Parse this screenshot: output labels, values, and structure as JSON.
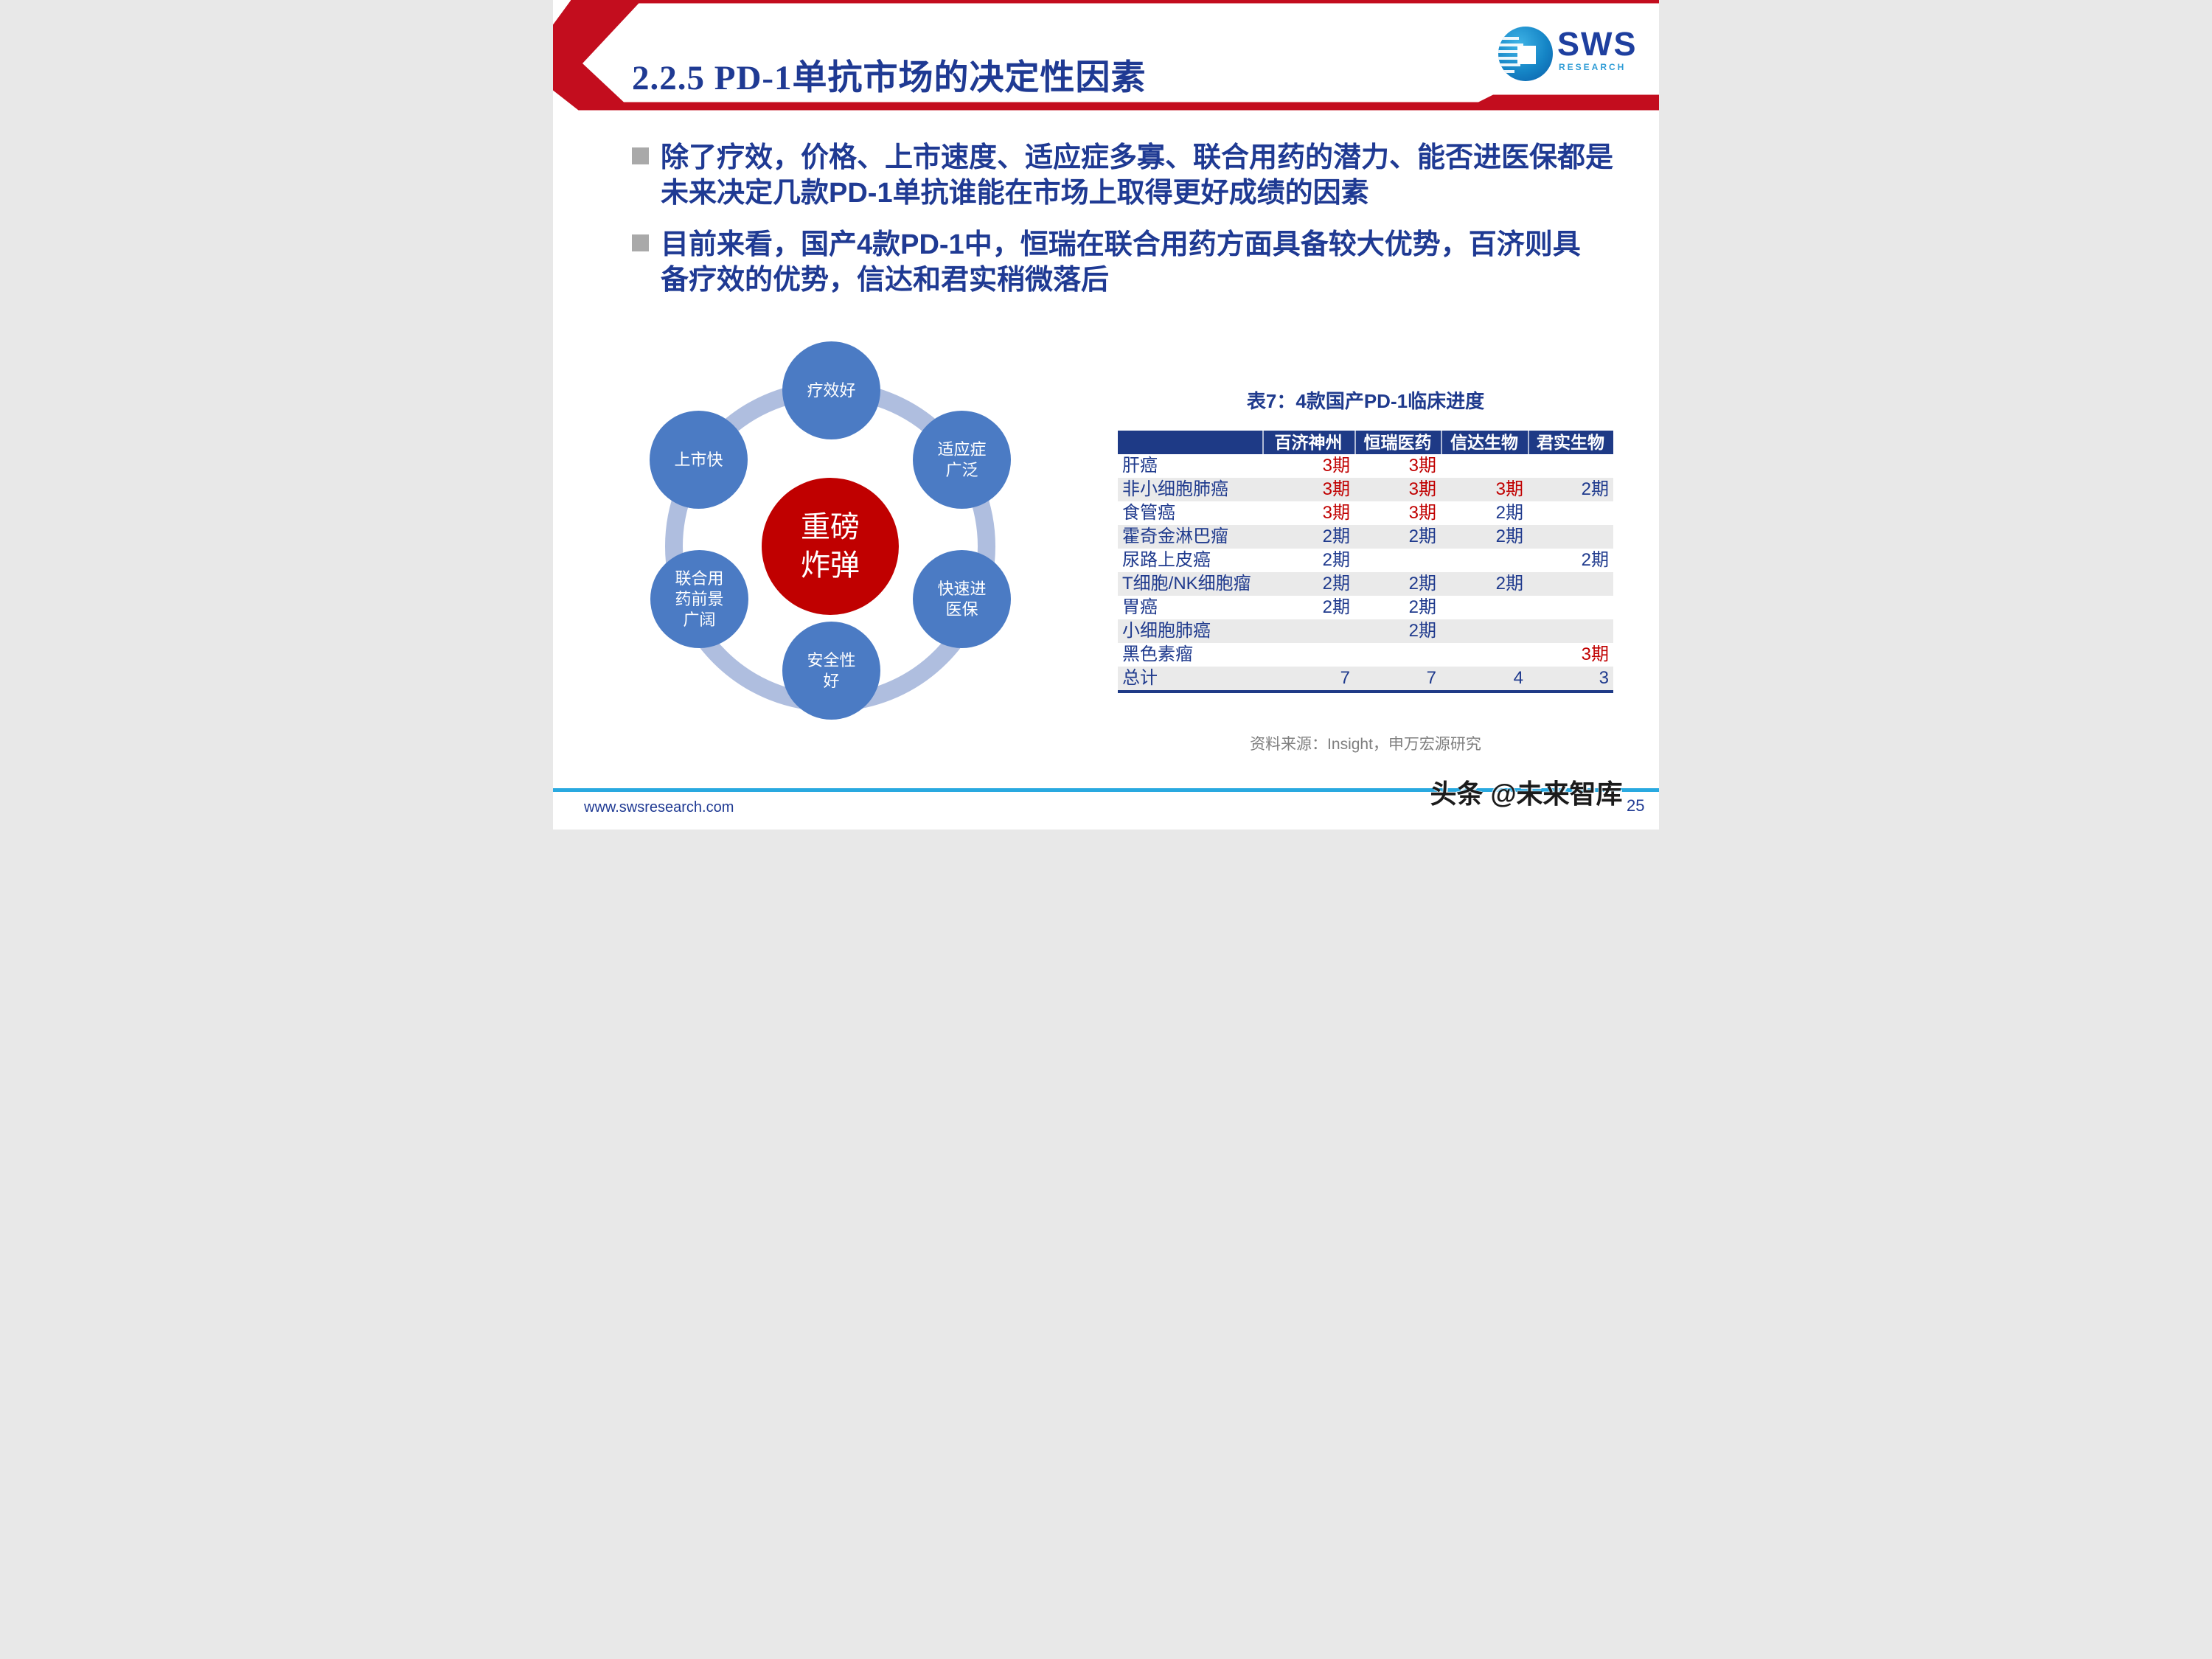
{
  "header": {
    "title": "2.2.5 PD-1单抗市场的决定性因素",
    "logo": {
      "sws": "SWS",
      "research": "RESEARCH"
    }
  },
  "bullets": [
    {
      "text": "除了疗效，价格、上市速度、适应症多寡、联合用药的潜力、能否进医保都是\n未来决定几款PD-1单抗谁能在市场上取得更好成绩的因素"
    },
    {
      "text": "目前来看，国产4款PD-1中，恒瑞在联合用药方面具备较大优势，百济则具\n备疗效的优势，信达和君实稍微落后"
    }
  ],
  "diagram": {
    "center_label": "重磅\n炸弹",
    "satellites": [
      {
        "label": "疗效好"
      },
      {
        "label": "适应症\n广泛"
      },
      {
        "label": "快速进\n医保"
      },
      {
        "label": "安全性\n好"
      },
      {
        "label": "联合用\n药前景\n广阔"
      },
      {
        "label": "上市快"
      }
    ]
  },
  "table": {
    "title": "表7：4款国产PD-1临床进度",
    "columns": [
      "百济神州",
      "恒瑞医药",
      "信达生物",
      "君实生物"
    ],
    "rows": [
      {
        "label": "肝癌",
        "cells": [
          {
            "text": "3期",
            "tone": "red"
          },
          {
            "text": "3期",
            "tone": "red"
          },
          {
            "text": "",
            "tone": ""
          },
          {
            "text": "",
            "tone": ""
          }
        ]
      },
      {
        "label": "非小细胞肺癌",
        "cells": [
          {
            "text": "3期",
            "tone": "red"
          },
          {
            "text": "3期",
            "tone": "red"
          },
          {
            "text": "3期",
            "tone": "red"
          },
          {
            "text": "2期",
            "tone": "blue"
          }
        ]
      },
      {
        "label": "食管癌",
        "cells": [
          {
            "text": "3期",
            "tone": "red"
          },
          {
            "text": "3期",
            "tone": "red"
          },
          {
            "text": "2期",
            "tone": "blue"
          },
          {
            "text": "",
            "tone": ""
          }
        ]
      },
      {
        "label": "霍奇金淋巴瘤",
        "cells": [
          {
            "text": "2期",
            "tone": "blue"
          },
          {
            "text": "2期",
            "tone": "blue"
          },
          {
            "text": "2期",
            "tone": "blue"
          },
          {
            "text": "",
            "tone": ""
          }
        ]
      },
      {
        "label": "尿路上皮癌",
        "cells": [
          {
            "text": "2期",
            "tone": "blue"
          },
          {
            "text": "",
            "tone": ""
          },
          {
            "text": "",
            "tone": ""
          },
          {
            "text": "2期",
            "tone": "blue"
          }
        ]
      },
      {
        "label": "T细胞/NK细胞瘤",
        "cells": [
          {
            "text": "2期",
            "tone": "blue"
          },
          {
            "text": "2期",
            "tone": "blue"
          },
          {
            "text": "2期",
            "tone": "blue"
          },
          {
            "text": "",
            "tone": ""
          }
        ]
      },
      {
        "label": "胃癌",
        "cells": [
          {
            "text": "2期",
            "tone": "blue"
          },
          {
            "text": "2期",
            "tone": "blue"
          },
          {
            "text": "",
            "tone": ""
          },
          {
            "text": "",
            "tone": ""
          }
        ]
      },
      {
        "label": "小细胞肺癌",
        "cells": [
          {
            "text": "",
            "tone": ""
          },
          {
            "text": "2期",
            "tone": "blue"
          },
          {
            "text": "",
            "tone": ""
          },
          {
            "text": "",
            "tone": ""
          }
        ]
      },
      {
        "label": "黑色素瘤",
        "cells": [
          {
            "text": "",
            "tone": ""
          },
          {
            "text": "",
            "tone": ""
          },
          {
            "text": "",
            "tone": ""
          },
          {
            "text": "3期",
            "tone": "red"
          }
        ]
      },
      {
        "label": "总计",
        "cells": [
          {
            "text": "7",
            "tone": "blue"
          },
          {
            "text": "7",
            "tone": "blue"
          },
          {
            "text": "4",
            "tone": "blue"
          },
          {
            "text": "3",
            "tone": "blue"
          }
        ]
      }
    ],
    "source": "资料来源：Insight，申万宏源研究"
  },
  "footer": {
    "url": "www.swsresearch.com",
    "watermark": "头条 @未来智库",
    "page_number": "25"
  },
  "colors": {
    "banner_red": "#C30D1E",
    "bomb_red": "#C00000",
    "phase3_red": "#C00000",
    "navy_text": "#1F3A8D",
    "table_header_navy": "#1E3A86",
    "circle_blue": "#4B7BC4",
    "ring_blue": "#AFBEDF",
    "alt_row_gray": "#EAEAEA",
    "cyan_line": "#29A9E0",
    "source_gray": "#7F7F7F"
  }
}
